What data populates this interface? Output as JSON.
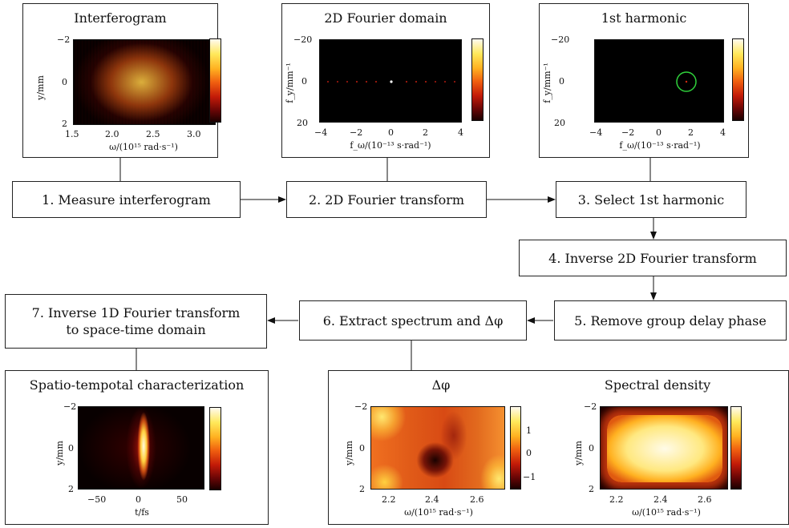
{
  "panels": {
    "interferogram": {
      "title": "Interferogram",
      "ylabel": "y/mm",
      "xlabel": "ω/(10¹⁵ rad·s⁻¹)",
      "yticks": [
        "−2",
        "0",
        "2"
      ],
      "xticks": [
        "1.5",
        "2.0",
        "2.5",
        "3.0"
      ]
    },
    "fourier": {
      "title": "2D Fourier domain",
      "ylabel": "f_y/mm⁻¹",
      "xlabel": "f_ω/(10⁻¹³ s·rad⁻¹)",
      "yticks": [
        "−20",
        "0",
        "20"
      ],
      "xticks": [
        "−4",
        "−2",
        "0",
        "2",
        "4"
      ]
    },
    "harmonic": {
      "title": "1st harmonic",
      "ylabel": "f_y/mm⁻¹",
      "xlabel": "f_ω/(10⁻¹³ s·rad⁻¹)",
      "yticks": [
        "−20",
        "0",
        "20"
      ],
      "xticks": [
        "−4",
        "−2",
        "0",
        "2",
        "4"
      ]
    },
    "spatio": {
      "title": "Spatio-tempotal characterization",
      "ylabel": "y/mm",
      "xlabel": "t/fs",
      "yticks": [
        "−2",
        "0",
        "2"
      ],
      "xticks": [
        "−50",
        "0",
        "50"
      ]
    },
    "phase": {
      "title": "Δφ",
      "ylabel": "y/mm",
      "xlabel": "ω/(10¹⁵ rad·s⁻¹)",
      "yticks": [
        "−2",
        "0",
        "2"
      ],
      "xticks": [
        "2.2",
        "2.4",
        "2.6"
      ],
      "cbticks": [
        "1",
        "0",
        "−1"
      ]
    },
    "spectral": {
      "title": "Spectral density",
      "ylabel": "y/mm",
      "xlabel": "ω/(10¹⁵ rad·s⁻¹)",
      "yticks": [
        "−2",
        "0",
        "2"
      ],
      "xticks": [
        "2.2",
        "2.4",
        "2.6"
      ]
    }
  },
  "steps": {
    "s1": "1. Measure interferogram",
    "s2": "2. 2D Fourier transform",
    "s3": "3. Select 1st harmonic",
    "s4": "4. Inverse 2D Fourier transform",
    "s5": "5. Remove group delay phase",
    "s6": "6. Extract spectrum and Δφ",
    "s7": "7. Inverse 1D Fourier transform\nto space-time domain"
  }
}
